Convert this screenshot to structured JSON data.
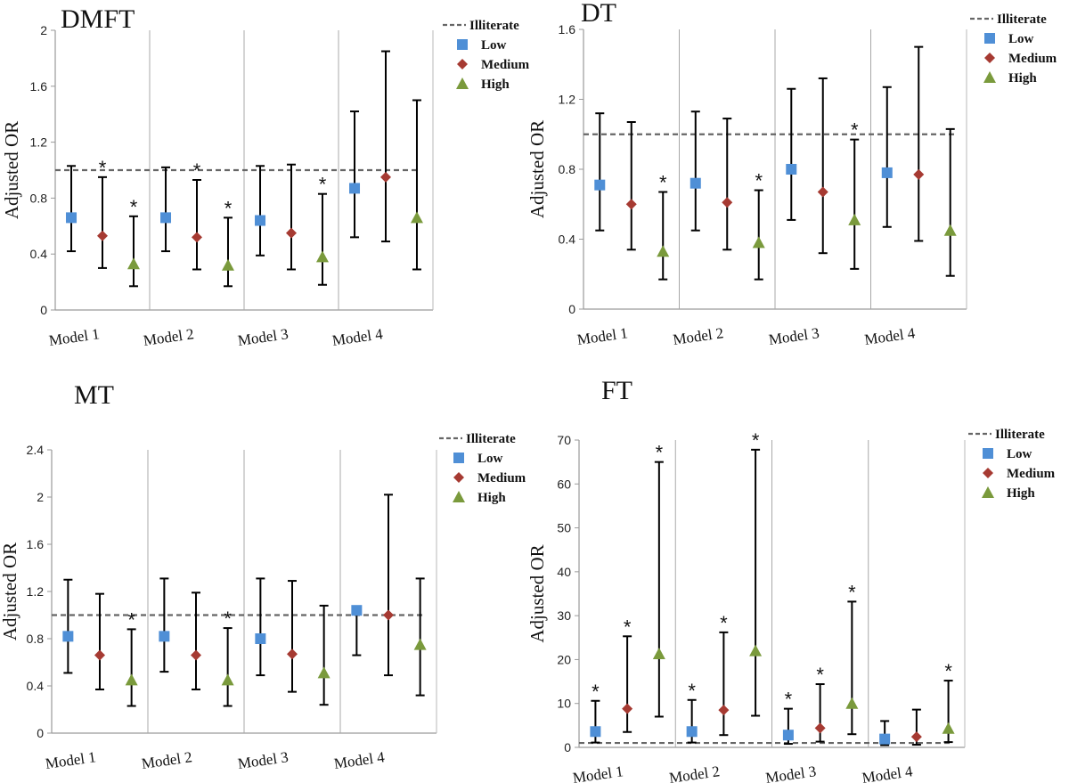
{
  "chart_data": [
    {
      "type": "errorbar",
      "title": "DMFT",
      "ylabel": "Adjusted OR",
      "ylim": [
        0,
        2
      ],
      "yticks": [
        "0",
        "0.4",
        "0.8",
        "1.2",
        "1.6",
        "2"
      ],
      "categories": [
        "Model 1",
        "Model 2",
        "Model 3",
        "Model 4"
      ],
      "reference": {
        "name": "Illiterate",
        "value": 1.0
      },
      "series": [
        {
          "name": "Low",
          "marker": "square",
          "color": "#4f8fd6",
          "values": [
            0.66,
            0.66,
            0.64,
            0.87
          ],
          "lower": [
            0.42,
            0.42,
            0.39,
            0.52
          ],
          "upper": [
            1.03,
            1.02,
            1.03,
            1.42
          ],
          "significant": [
            false,
            false,
            false,
            false
          ]
        },
        {
          "name": "Medium",
          "marker": "diamond",
          "color": "#a63a32",
          "values": [
            0.53,
            0.52,
            0.55,
            0.95
          ],
          "lower": [
            0.3,
            0.29,
            0.29,
            0.49
          ],
          "upper": [
            0.95,
            0.93,
            1.04,
            1.85
          ],
          "significant": [
            true,
            true,
            false,
            false
          ]
        },
        {
          "name": "High",
          "marker": "triangle",
          "color": "#7a9a3c",
          "values": [
            0.33,
            0.32,
            0.38,
            0.66
          ],
          "lower": [
            0.17,
            0.17,
            0.18,
            0.29
          ],
          "upper": [
            0.67,
            0.66,
            0.83,
            1.5
          ],
          "significant": [
            true,
            true,
            true,
            false
          ]
        }
      ]
    },
    {
      "type": "errorbar",
      "title": "DT",
      "ylabel": "Adjusted OR",
      "ylim": [
        0,
        1.6
      ],
      "yticks": [
        "0",
        "0.4",
        "0.8",
        "1.2",
        "1.6"
      ],
      "categories": [
        "Model 1",
        "Model 2",
        "Model 3",
        "Model 4"
      ],
      "reference": {
        "name": "Illiterate",
        "value": 1.0
      },
      "series": [
        {
          "name": "Low",
          "marker": "square",
          "color": "#4f8fd6",
          "values": [
            0.71,
            0.72,
            0.8,
            0.78
          ],
          "lower": [
            0.45,
            0.45,
            0.51,
            0.47
          ],
          "upper": [
            1.12,
            1.13,
            1.26,
            1.27
          ],
          "significant": [
            false,
            false,
            false,
            false
          ]
        },
        {
          "name": "Medium",
          "marker": "diamond",
          "color": "#a63a32",
          "values": [
            0.6,
            0.61,
            0.67,
            0.77
          ],
          "lower": [
            0.34,
            0.34,
            0.32,
            0.39
          ],
          "upper": [
            1.07,
            1.09,
            1.32,
            1.5
          ],
          "significant": [
            false,
            false,
            false,
            false
          ]
        },
        {
          "name": "High",
          "marker": "triangle",
          "color": "#7a9a3c",
          "values": [
            0.33,
            0.38,
            0.51,
            0.45
          ],
          "lower": [
            0.17,
            0.17,
            0.23,
            0.19
          ],
          "upper": [
            0.67,
            0.68,
            0.97,
            1.03
          ],
          "significant": [
            true,
            true,
            true,
            false
          ]
        }
      ]
    },
    {
      "type": "errorbar",
      "title": "MT",
      "ylabel": "Adjusted OR",
      "ylim": [
        0,
        2.4
      ],
      "yticks": [
        "0",
        "0.4",
        "0.8",
        "1.2",
        "1.6",
        "2",
        "2.4"
      ],
      "categories": [
        "Model 1",
        "Model 2",
        "Model 3",
        "Model 4"
      ],
      "reference": {
        "name": "Illiterate",
        "value": 1.0
      },
      "series": [
        {
          "name": "Low",
          "marker": "square",
          "color": "#4f8fd6",
          "values": [
            0.82,
            0.82,
            0.8,
            1.04
          ],
          "lower": [
            0.51,
            0.52,
            0.49,
            0.66
          ],
          "upper": [
            1.3,
            1.31,
            1.31,
            1.04
          ],
          "significant": [
            false,
            false,
            false,
            false
          ]
        },
        {
          "name": "Medium",
          "marker": "diamond",
          "color": "#a63a32",
          "values": [
            0.66,
            0.66,
            0.67,
            1.0
          ],
          "lower": [
            0.37,
            0.37,
            0.35,
            0.49
          ],
          "upper": [
            1.18,
            1.19,
            1.29,
            2.02
          ],
          "significant": [
            false,
            false,
            false,
            false
          ]
        },
        {
          "name": "High",
          "marker": "triangle",
          "color": "#7a9a3c",
          "values": [
            0.45,
            0.45,
            0.51,
            0.75
          ],
          "lower": [
            0.23,
            0.23,
            0.24,
            0.32
          ],
          "upper": [
            0.88,
            0.89,
            1.08,
            1.31
          ],
          "significant": [
            true,
            true,
            false,
            false
          ]
        }
      ]
    },
    {
      "type": "errorbar",
      "title": "FT",
      "ylabel": "Adjusted OR",
      "ylim": [
        0,
        70
      ],
      "yticks": [
        "0",
        "10",
        "20",
        "30",
        "40",
        "50",
        "60",
        "70"
      ],
      "categories": [
        "Model 1",
        "Model 2",
        "Model 3",
        "Model 4"
      ],
      "reference": {
        "name": "Illiterate",
        "value": 1.0
      },
      "series": [
        {
          "name": "Low",
          "marker": "square",
          "color": "#4f8fd6",
          "values": [
            3.6,
            3.6,
            2.8,
            1.9
          ],
          "lower": [
            1.1,
            1.1,
            0.8,
            0.5
          ],
          "upper": [
            10.6,
            10.8,
            8.8,
            6.0
          ],
          "significant": [
            true,
            true,
            true,
            false
          ]
        },
        {
          "name": "Medium",
          "marker": "diamond",
          "color": "#a63a32",
          "values": [
            8.8,
            8.5,
            4.4,
            2.4
          ],
          "lower": [
            3.5,
            2.8,
            1.3,
            0.6
          ],
          "upper": [
            25.3,
            26.2,
            14.4,
            8.6
          ],
          "significant": [
            true,
            true,
            true,
            false
          ]
        },
        {
          "name": "High",
          "marker": "triangle",
          "color": "#7a9a3c",
          "values": [
            21.3,
            22.0,
            10.0,
            4.3
          ],
          "lower": [
            7.0,
            7.2,
            3.0,
            1.2
          ],
          "upper": [
            65.0,
            67.8,
            33.2,
            15.2
          ],
          "significant": [
            true,
            true,
            true,
            true
          ]
        }
      ]
    }
  ]
}
